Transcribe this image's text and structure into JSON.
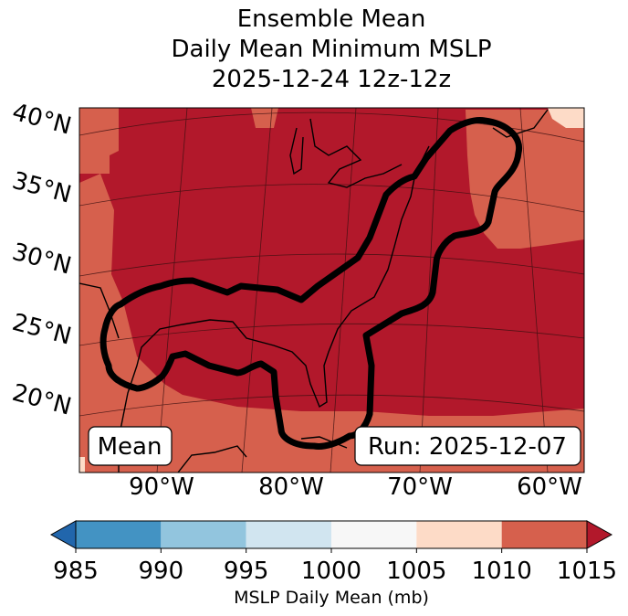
{
  "chart_data": {
    "type": "heatmap",
    "title": [
      "Ensemble Mean",
      "Daily Mean Minimum MSLP",
      "2025-12-24 12z-12z"
    ],
    "lat_ticks": [
      "40°N",
      "35°N",
      "30°N",
      "25°N",
      "20°N"
    ],
    "lon_ticks": [
      "90°W",
      "80°W",
      "70°W",
      "60°W"
    ],
    "annotations": {
      "left": "Mean",
      "right": "Run: 2025-12-07"
    },
    "colorbar": {
      "label": "MSLP Daily Mean (mb)",
      "levels": [
        985,
        990,
        995,
        1000,
        1005,
        1010,
        1015
      ],
      "tick_labels": [
        "985",
        "990",
        "995",
        "1000",
        "1005",
        "1010",
        "1015"
      ],
      "colors": [
        "#4393c3",
        "#92c5de",
        "#d1e5f0",
        "#f7f7f7",
        "#fddbc7",
        "#d6604d"
      ],
      "under_color": "#2166ac",
      "over_color": "#b2182b",
      "extend": "both"
    },
    "field_summary": {
      "dominant_category": ">1015",
      "edge_category": "1010-1015",
      "corner_category": "1005-1010"
    },
    "contour": {
      "color": "#000000",
      "description": ""
    }
  }
}
